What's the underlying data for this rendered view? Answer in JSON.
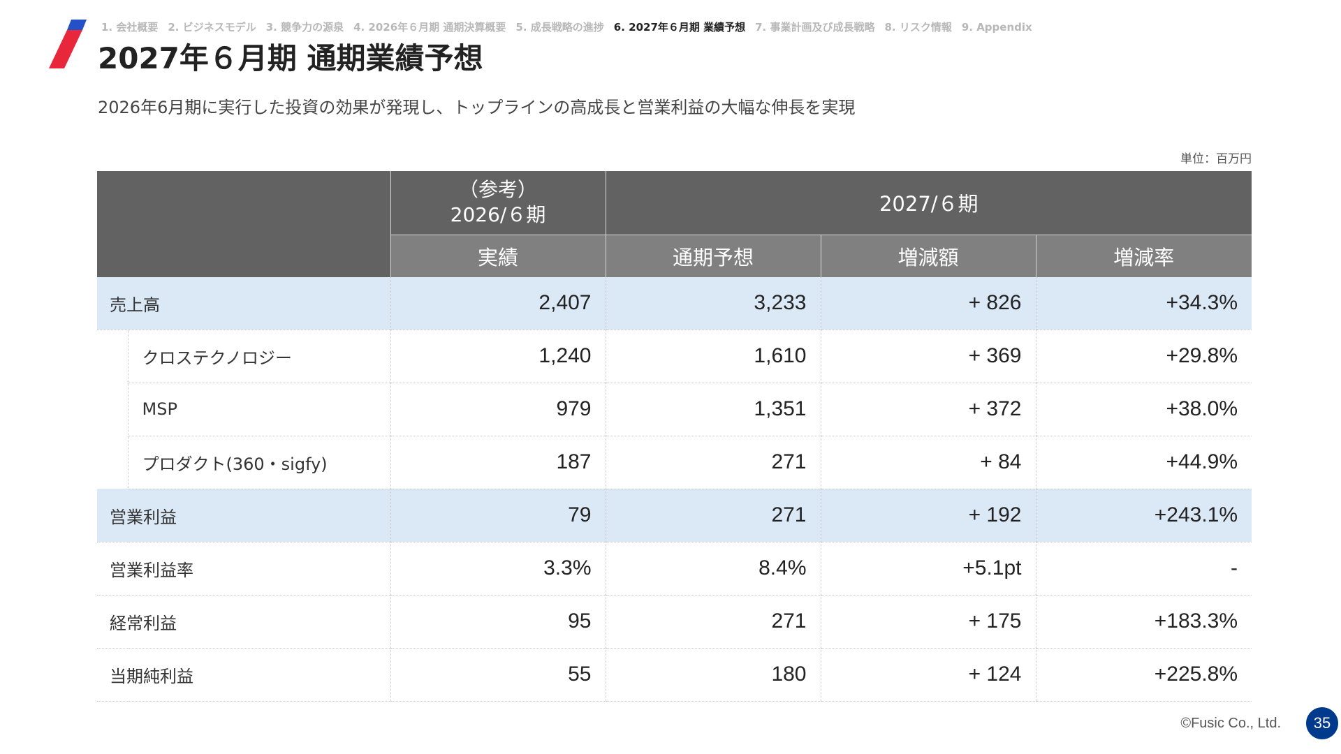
{
  "nav": [
    {
      "label": "1. 会社概要",
      "active": false
    },
    {
      "label": "2. ビジネスモデル",
      "active": false
    },
    {
      "label": "3. 競争力の源泉",
      "active": false
    },
    {
      "label": "4. 2026年６月期 通期決算概要",
      "active": false
    },
    {
      "label": "5. 成長戦略の進捗",
      "active": false
    },
    {
      "label": "6. 2027年６月期 業績予想",
      "active": true
    },
    {
      "label": "7. 事業計画及び成長戦略",
      "active": false
    },
    {
      "label": "8. リスク情報",
      "active": false
    },
    {
      "label": "9. Appendix",
      "active": false
    }
  ],
  "title": "2027年６月期 通期業績予想",
  "subtitle": "2026年6月期に実行した投資の効果が発現し、トップラインの高成長と営業利益の大幅な伸長を実現",
  "unit": "単位：百万円",
  "table": {
    "prev_period_note": "（参考）",
    "prev_period": "2026/６期",
    "cur_period": "2027/６期",
    "columns": [
      "実績",
      "通期予想",
      "増減額",
      "増減率"
    ],
    "rows": [
      {
        "label": "売上高",
        "values": [
          "2,407",
          "3,233",
          "+ 826",
          "+34.3%"
        ],
        "highlight": true,
        "indent": false
      },
      {
        "label": "クロステクノロジー",
        "values": [
          "1,240",
          "1,610",
          "+ 369",
          "+29.8%"
        ],
        "highlight": false,
        "indent": true
      },
      {
        "label": "MSP",
        "values": [
          "979",
          "1,351",
          "+ 372",
          "+38.0%"
        ],
        "highlight": false,
        "indent": true
      },
      {
        "label": "プロダクト(360・sigfy)",
        "values": [
          "187",
          "271",
          "+ 84",
          "+44.9%"
        ],
        "highlight": false,
        "indent": true
      },
      {
        "label": "営業利益",
        "values": [
          "79",
          "271",
          "+ 192",
          "+243.1%"
        ],
        "highlight": true,
        "indent": false
      },
      {
        "label": "営業利益率",
        "values": [
          "3.3%",
          "8.4%",
          "+5.1pt",
          "-"
        ],
        "highlight": false,
        "indent": false
      },
      {
        "label": "経常利益",
        "values": [
          "95",
          "271",
          "+ 175",
          "+183.3%"
        ],
        "highlight": false,
        "indent": false
      },
      {
        "label": "当期純利益",
        "values": [
          "55",
          "180",
          "+ 124",
          "+225.8%"
        ],
        "highlight": false,
        "indent": false
      }
    ]
  },
  "footer": {
    "copyright": "©Fusic Co., Ltd.",
    "page": "35"
  },
  "colors": {
    "brand_blue": "#2450c8",
    "brand_red": "#e8273a",
    "header_dark": "#626262",
    "header_mid": "#808080",
    "highlight_row": "#dbe9f6",
    "page_badge": "#003a8c"
  }
}
